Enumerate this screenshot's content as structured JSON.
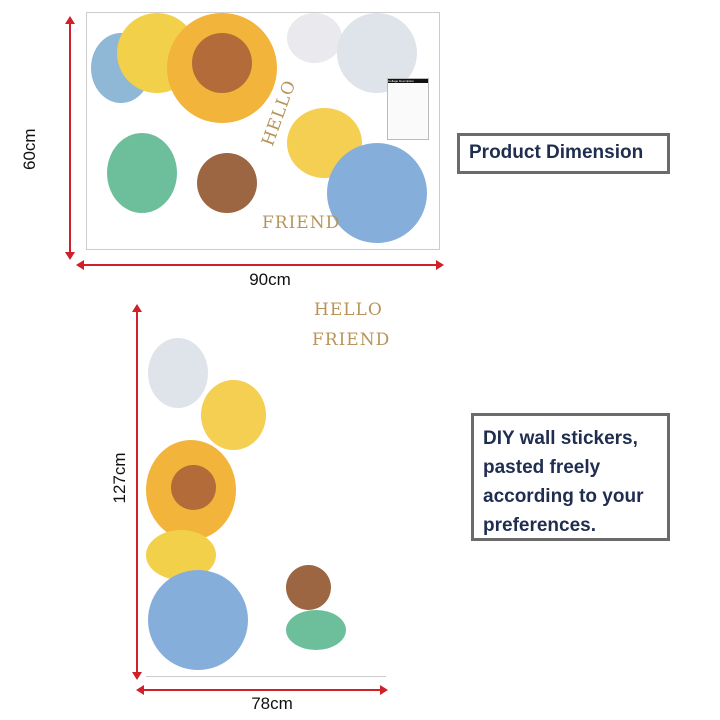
{
  "top_sheet": {
    "width_label": "90cm",
    "height_label": "60cm",
    "art_text": [
      "HELLO",
      "FRIEND"
    ],
    "label_title": "Collage Description"
  },
  "bottom_layout": {
    "width_label": "78cm",
    "height_label": "127cm",
    "art_text": [
      "HELLO",
      "FRIEND"
    ]
  },
  "callouts": {
    "dimension": "Product Dimension",
    "description": "DIY wall stickers, pasted freely according to your preferences."
  },
  "colors": {
    "arrow": "#d0202a",
    "callout_text": "#1f2d4f",
    "callout_border": "#6b6b6b"
  }
}
